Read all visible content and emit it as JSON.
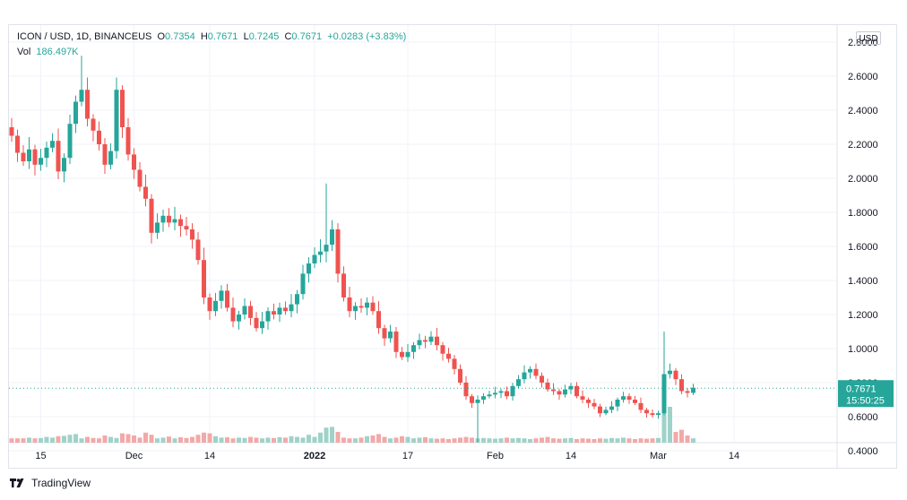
{
  "legend": {
    "symbol": "ICON / USD, 1D, BINANCEUS",
    "o_label": "O",
    "o_value": "0.7354",
    "h_label": "H",
    "h_value": "0.7671",
    "l_label": "L",
    "l_value": "0.7245",
    "c_label": "C",
    "c_value": "0.7671",
    "change": "+0.0283 (+3.83%)",
    "vol_label": "Vol",
    "vol_value": "186.497K"
  },
  "currency": "USD",
  "footer": {
    "brand": "TradingView"
  },
  "colors": {
    "up": "#26a69a",
    "down": "#ef5350",
    "up_vol": "#9fd2c8",
    "down_vol": "#f2a9a7"
  },
  "chart_data": {
    "type": "candlestick",
    "title": "ICON / USD, 1D, BINANCEUS",
    "ylim": [
      0.3,
      2.9
    ],
    "y_ticks": [
      "2.8000",
      "2.6000",
      "2.4000",
      "2.2000",
      "2.0000",
      "1.8000",
      "1.6000",
      "1.4000",
      "1.2000",
      "1.0000",
      "0.8000",
      "0.6000",
      "0.4000"
    ],
    "x_ticks": [
      {
        "label": "15",
        "day": 5
      },
      {
        "label": "Dec",
        "day": 21
      },
      {
        "label": "14",
        "day": 34
      },
      {
        "label": "2022",
        "day": 52
      },
      {
        "label": "17",
        "day": 68
      },
      {
        "label": "Feb",
        "day": 83
      },
      {
        "label": "14",
        "day": 96
      },
      {
        "label": "Mar",
        "day": 111
      },
      {
        "label": "14",
        "day": 124
      }
    ],
    "last_price": "0.7671",
    "countdown": "15:50:25",
    "closes": [
      2.25,
      2.15,
      2.1,
      2.17,
      2.08,
      2.12,
      2.18,
      2.22,
      2.04,
      2.12,
      2.32,
      2.45,
      2.52,
      2.35,
      2.28,
      2.2,
      2.08,
      2.16,
      2.52,
      2.3,
      2.14,
      2.05,
      1.95,
      1.88,
      1.68,
      1.74,
      1.78,
      1.74,
      1.76,
      1.72,
      1.7,
      1.64,
      1.52,
      1.3,
      1.22,
      1.28,
      1.34,
      1.24,
      1.16,
      1.2,
      1.25,
      1.18,
      1.12,
      1.16,
      1.22,
      1.2,
      1.24,
      1.22,
      1.26,
      1.32,
      1.44,
      1.5,
      1.55,
      1.57,
      1.61,
      1.7,
      1.44,
      1.3,
      1.22,
      1.25,
      1.24,
      1.27,
      1.22,
      1.12,
      1.06,
      1.1,
      0.98,
      0.95,
      0.98,
      1.02,
      1.05,
      1.04,
      1.07,
      1.02,
      0.97,
      0.94,
      0.88,
      0.8,
      0.72,
      0.68,
      0.7,
      0.72,
      0.73,
      0.74,
      0.75,
      0.72,
      0.78,
      0.82,
      0.86,
      0.88,
      0.84,
      0.8,
      0.76,
      0.75,
      0.73,
      0.76,
      0.78,
      0.72,
      0.7,
      0.68,
      0.66,
      0.62,
      0.64,
      0.66,
      0.7,
      0.72,
      0.7,
      0.68,
      0.64,
      0.62,
      0.61,
      0.62,
      0.85,
      0.87,
      0.82,
      0.75,
      0.74,
      0.77
    ],
    "volumes": [
      0.12,
      0.12,
      0.12,
      0.14,
      0.12,
      0.13,
      0.16,
      0.14,
      0.18,
      0.19,
      0.22,
      0.24,
      0.12,
      0.16,
      0.13,
      0.12,
      0.2,
      0.16,
      0.13,
      0.26,
      0.24,
      0.2,
      0.14,
      0.28,
      0.22,
      0.12,
      0.14,
      0.17,
      0.12,
      0.15,
      0.13,
      0.16,
      0.22,
      0.28,
      0.26,
      0.18,
      0.14,
      0.15,
      0.12,
      0.14,
      0.13,
      0.16,
      0.14,
      0.12,
      0.14,
      0.13,
      0.15,
      0.14,
      0.18,
      0.16,
      0.14,
      0.22,
      0.16,
      0.28,
      0.42,
      0.44,
      0.3,
      0.14,
      0.12,
      0.12,
      0.14,
      0.18,
      0.2,
      0.24,
      0.16,
      0.12,
      0.14,
      0.18,
      0.16,
      0.12,
      0.14,
      0.15,
      0.12,
      0.11,
      0.12,
      0.1,
      0.12,
      0.14,
      0.16,
      0.14,
      0.12,
      0.13,
      0.12,
      0.11,
      0.12,
      0.14,
      0.12,
      0.13,
      0.12,
      0.1,
      0.12,
      0.14,
      0.16,
      0.12,
      0.11,
      0.12,
      0.13,
      0.1,
      0.12,
      0.11,
      0.1,
      0.12,
      0.11,
      0.13,
      0.12,
      0.14,
      0.12,
      0.1,
      0.12,
      0.11,
      0.12,
      0.13,
      0.95,
      1.0,
      0.3,
      0.36,
      0.2,
      0.12
    ]
  }
}
